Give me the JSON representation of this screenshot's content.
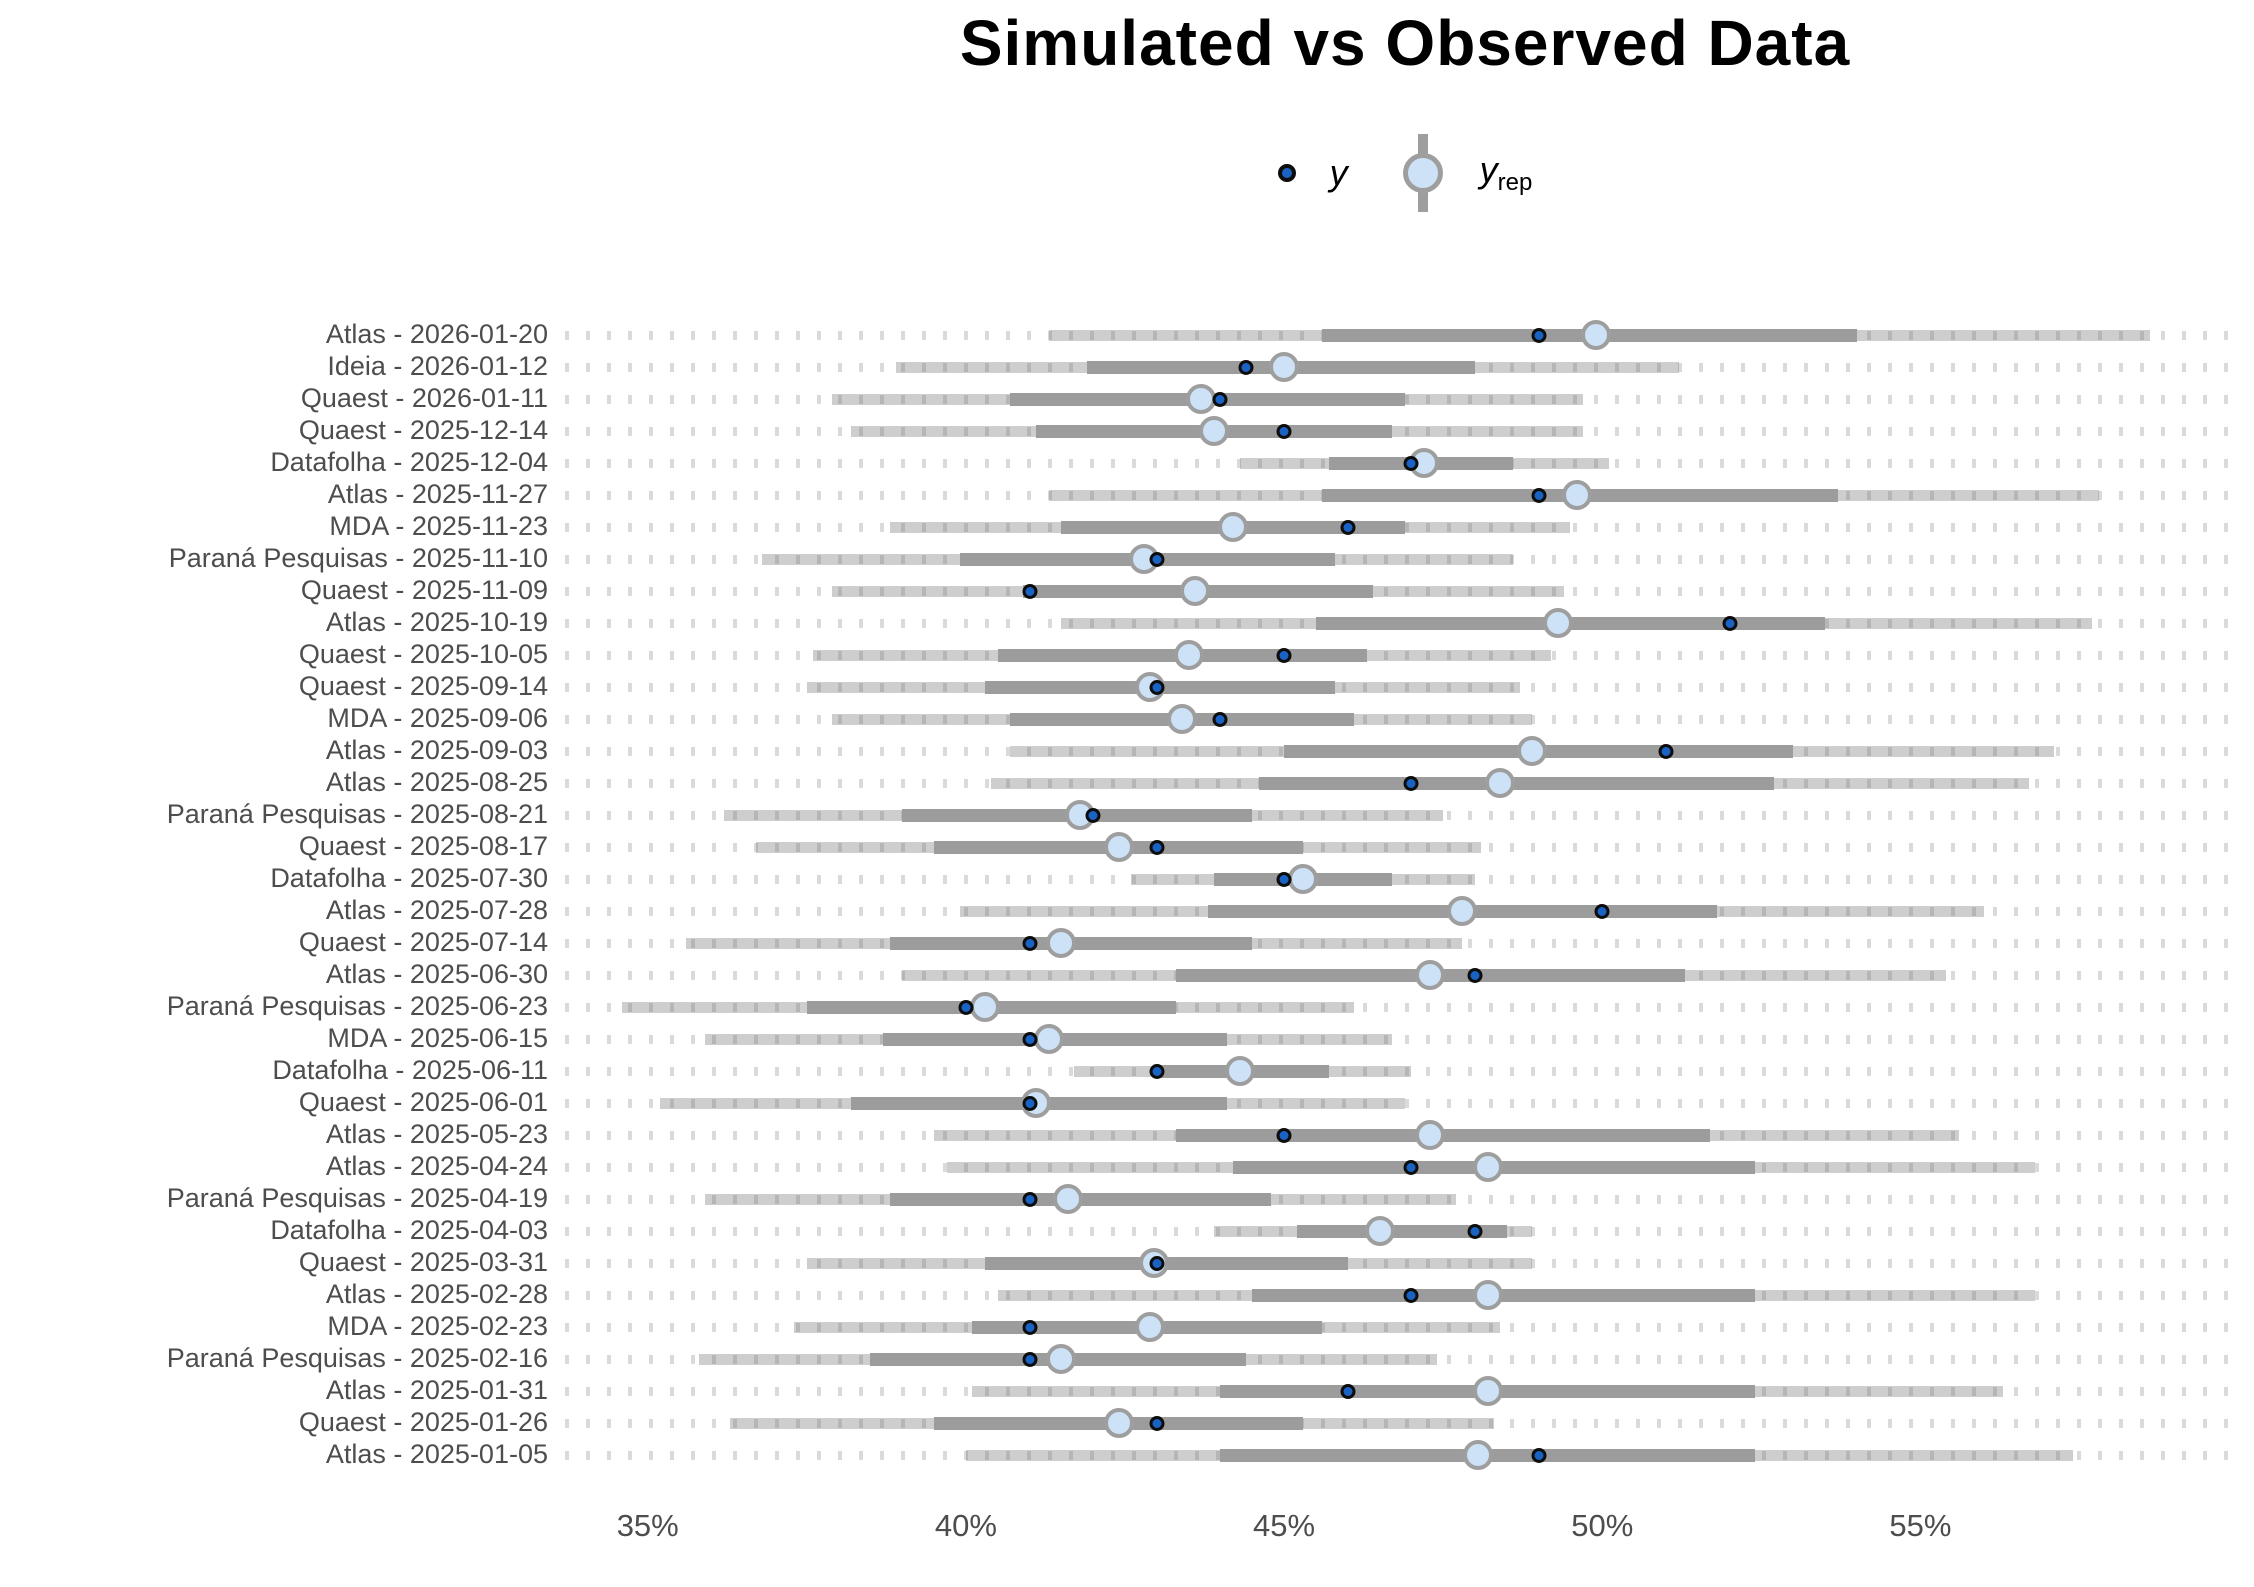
{
  "chart_data": {
    "type": "interval_dot",
    "title": "Simulated vs Observed Data",
    "legend": {
      "y_label": "y",
      "yrep_label_main": "y",
      "yrep_label_sub": "rep"
    },
    "x_axis": {
      "ticks": [
        "35%",
        "40%",
        "45%",
        "50%",
        "55%"
      ],
      "tick_values": [
        35,
        40,
        45,
        50,
        55
      ],
      "range": [
        33.7,
        60.1
      ],
      "unit": "percent"
    },
    "colors": {
      "navy_dot": "#1a63c5",
      "yrep_fill": "#cde1f7",
      "ring_gray": "#9e9e9e",
      "inner_bar": "#9c9c9c",
      "outer_bar": "#d2d2d2",
      "dash": "#dadada"
    },
    "rows": [
      {
        "label": "Atlas - 2026-01-20",
        "outer": [
          41.3,
          58.6
        ],
        "inner": [
          45.6,
          54.0
        ],
        "y_rep": 49.9,
        "y": 49.0
      },
      {
        "label": "Ideia - 2026-01-12",
        "outer": [
          38.9,
          51.2
        ],
        "inner": [
          41.9,
          48.0
        ],
        "y_rep": 45.0,
        "y": 44.4
      },
      {
        "label": "Quaest - 2026-01-11",
        "outer": [
          37.9,
          49.7
        ],
        "inner": [
          40.7,
          46.9
        ],
        "y_rep": 43.7,
        "y": 44.0
      },
      {
        "label": "Quaest - 2025-12-14",
        "outer": [
          38.2,
          49.7
        ],
        "inner": [
          41.1,
          46.7
        ],
        "y_rep": 43.9,
        "y": 45.0
      },
      {
        "label": "Datafolha - 2025-12-04",
        "outer": [
          44.3,
          50.1
        ],
        "inner": [
          45.7,
          48.6
        ],
        "y_rep": 47.2,
        "y": 47.0
      },
      {
        "label": "Atlas - 2025-11-27",
        "outer": [
          41.3,
          57.8
        ],
        "inner": [
          45.6,
          53.7
        ],
        "y_rep": 49.6,
        "y": 49.0
      },
      {
        "label": "MDA - 2025-11-23",
        "outer": [
          38.8,
          49.5
        ],
        "inner": [
          41.5,
          46.9
        ],
        "y_rep": 44.2,
        "y": 46.0
      },
      {
        "label": "Paraná Pesquisas - 2025-11-10",
        "outer": [
          36.8,
          48.6
        ],
        "inner": [
          39.9,
          45.8
        ],
        "y_rep": 42.8,
        "y": 43.0
      },
      {
        "label": "Quaest - 2025-11-09",
        "outer": [
          37.9,
          49.4
        ],
        "inner": [
          40.9,
          46.4
        ],
        "y_rep": 43.6,
        "y": 41.0
      },
      {
        "label": "Atlas - 2025-10-19",
        "outer": [
          41.5,
          57.7
        ],
        "inner": [
          45.5,
          53.5
        ],
        "y_rep": 49.3,
        "y": 52.0
      },
      {
        "label": "Quaest - 2025-10-05",
        "outer": [
          37.6,
          49.2
        ],
        "inner": [
          40.5,
          46.3
        ],
        "y_rep": 43.5,
        "y": 45.0
      },
      {
        "label": "Quaest - 2025-09-14",
        "outer": [
          37.5,
          48.7
        ],
        "inner": [
          40.3,
          45.8
        ],
        "y_rep": 42.9,
        "y": 43.0
      },
      {
        "label": "MDA - 2025-09-06",
        "outer": [
          37.9,
          48.9
        ],
        "inner": [
          40.7,
          46.1
        ],
        "y_rep": 43.4,
        "y": 44.0
      },
      {
        "label": "Atlas - 2025-09-03",
        "outer": [
          40.7,
          57.1
        ],
        "inner": [
          45.0,
          53.0
        ],
        "y_rep": 48.9,
        "y": 51.0
      },
      {
        "label": "Atlas - 2025-08-25",
        "outer": [
          40.4,
          56.7
        ],
        "inner": [
          44.6,
          52.7
        ],
        "y_rep": 48.4,
        "y": 47.0
      },
      {
        "label": "Paraná Pesquisas - 2025-08-21",
        "outer": [
          36.2,
          47.5
        ],
        "inner": [
          39.0,
          44.5
        ],
        "y_rep": 41.8,
        "y": 42.0
      },
      {
        "label": "Quaest - 2025-08-17",
        "outer": [
          36.7,
          48.1
        ],
        "inner": [
          39.5,
          45.3
        ],
        "y_rep": 42.4,
        "y": 43.0
      },
      {
        "label": "Datafolha - 2025-07-30",
        "outer": [
          42.6,
          48.0
        ],
        "inner": [
          43.9,
          46.7
        ],
        "y_rep": 45.3,
        "y": 45.0
      },
      {
        "label": "Atlas - 2025-07-28",
        "outer": [
          39.9,
          56.0
        ],
        "inner": [
          43.8,
          51.8
        ],
        "y_rep": 47.8,
        "y": 50.0
      },
      {
        "label": "Quaest - 2025-07-14",
        "outer": [
          35.6,
          47.8
        ],
        "inner": [
          38.8,
          44.5
        ],
        "y_rep": 41.5,
        "y": 41.0
      },
      {
        "label": "Atlas - 2025-06-30",
        "outer": [
          39.0,
          55.4
        ],
        "inner": [
          43.3,
          51.3
        ],
        "y_rep": 47.3,
        "y": 48.0
      },
      {
        "label": "Paraná Pesquisas - 2025-06-23",
        "outer": [
          34.6,
          46.1
        ],
        "inner": [
          37.5,
          43.3
        ],
        "y_rep": 40.3,
        "y": 40.0
      },
      {
        "label": "MDA - 2025-06-15",
        "outer": [
          35.9,
          46.7
        ],
        "inner": [
          38.7,
          44.1
        ],
        "y_rep": 41.3,
        "y": 41.0
      },
      {
        "label": "Datafolha - 2025-06-11",
        "outer": [
          41.7,
          47.0
        ],
        "inner": [
          43.0,
          45.7
        ],
        "y_rep": 44.3,
        "y": 43.0
      },
      {
        "label": "Quaest - 2025-06-01",
        "outer": [
          35.2,
          46.9
        ],
        "inner": [
          38.2,
          44.1
        ],
        "y_rep": 41.1,
        "y": 41.0
      },
      {
        "label": "Atlas - 2025-05-23",
        "outer": [
          39.5,
          55.6
        ],
        "inner": [
          43.3,
          51.7
        ],
        "y_rep": 47.3,
        "y": 45.0
      },
      {
        "label": "Atlas - 2025-04-24",
        "outer": [
          39.7,
          56.8
        ],
        "inner": [
          44.2,
          52.4
        ],
        "y_rep": 48.2,
        "y": 47.0
      },
      {
        "label": "Paraná Pesquisas - 2025-04-19",
        "outer": [
          35.9,
          47.7
        ],
        "inner": [
          38.8,
          44.8
        ],
        "y_rep": 41.6,
        "y": 41.0
      },
      {
        "label": "Datafolha - 2025-04-03",
        "outer": [
          43.9,
          48.9
        ],
        "inner": [
          45.2,
          48.5
        ],
        "y_rep": 46.5,
        "y": 48.0
      },
      {
        "label": "Quaest - 2025-03-31",
        "outer": [
          37.5,
          48.9
        ],
        "inner": [
          40.3,
          46.0
        ],
        "y_rep": 42.95,
        "y": 43.0
      },
      {
        "label": "Atlas - 2025-02-28",
        "outer": [
          40.5,
          56.8
        ],
        "inner": [
          44.5,
          52.4
        ],
        "y_rep": 48.2,
        "y": 47.0
      },
      {
        "label": "MDA - 2025-02-23",
        "outer": [
          37.3,
          48.4
        ],
        "inner": [
          40.1,
          45.6
        ],
        "y_rep": 42.9,
        "y": 41.0
      },
      {
        "label": "Paraná Pesquisas - 2025-02-16",
        "outer": [
          35.8,
          47.4
        ],
        "inner": [
          38.5,
          44.4
        ],
        "y_rep": 41.5,
        "y": 41.0
      },
      {
        "label": "Atlas - 2025-01-31",
        "outer": [
          40.1,
          56.3
        ],
        "inner": [
          44.0,
          52.4
        ],
        "y_rep": 48.2,
        "y": 46.0
      },
      {
        "label": "Quaest - 2025-01-26",
        "outer": [
          36.3,
          48.3
        ],
        "inner": [
          39.5,
          45.3
        ],
        "y_rep": 42.4,
        "y": 43.0
      },
      {
        "label": "Atlas - 2025-01-05",
        "outer": [
          40.0,
          57.4
        ],
        "inner": [
          44.0,
          52.4
        ],
        "y_rep": 48.05,
        "y": 49.0
      }
    ]
  }
}
